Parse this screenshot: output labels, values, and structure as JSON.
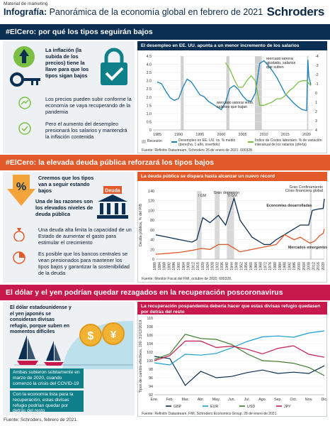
{
  "header": {
    "small": "Material de marketing",
    "title_bold": "Infografía:",
    "title_rest": " Panorámica de la economía global en febrero de 2021",
    "logo": "Schroders"
  },
  "section1": {
    "title": "#ElCero: por qué los tipos seguirán bajos",
    "text1": "La inflación (la subida de los precios) tiene la llave para que los tipos sigan bajos",
    "text2": "Los precios pueden subir conforme la economía se vaya recuperando de la pandemia",
    "text3": "Pero el aumento del desempleo presionará los salarios y mantendrá la inflación contenida",
    "chart_title": "El desempleo en EE. UU. apunta a un menor incremento de los salarios",
    "ann1": "Mercado laboral ajustado, salarios que suben",
    "ann2": "Mercado laboral lento, salarios que bajan",
    "legend1": "Recesión",
    "legend2": "Desempleo en EE. UU. vs. % medio (derecha, 1 año, invertido)",
    "legend3": "Índice de Costes laborales: % de variación interanual de los salarios (oferta)",
    "source": "Fuente: Refinitiv Datastream, Schroders 26 de enero de 2021. 600328"
  },
  "section2": {
    "title": "#ElCero: la elevada deuda pública reforzará los tipos bajos",
    "text1": "Creemos que los tipos van a seguir estando bajos",
    "text2": "Una de las razones son los elevados niveles de deuda pública",
    "text3": "Una deuda alta limita la capacidad de un Estado de aumentar el gasto para estimular el crecimiento",
    "text4": "Es posible que los bancos centrales se vean presionados para mantener los tipos bajos y garantizar la sostenibilidad de la deuda",
    "pct": "%",
    "deuda_label": "Deuda",
    "chart_title": "La deuda pública se dispara hasta alcanzar un nuevo récord",
    "ylabel": "Deuda pública, % del PIB",
    "ann_ww1": "I GM",
    "ann_ww2": "II GM",
    "ann_gd": "Gran depresión",
    "ann_gc": "Gran Confinamiento",
    "ann_cf": "Crisis financiera global",
    "series_adv": "Economías desarrolladas",
    "series_em": "Mercados emergentes",
    "source": "Fuente: Monitor Fiscal del FMI, octubre de 2020. 600328."
  },
  "section3": {
    "title": "El dólar y el yen podrían quedar rezagados en la recuperación poscoronavirus",
    "text1": "El dólar estadounidense y el yen japonés se consideran divisas refugio, porque suben en momentos difíciles",
    "text2": "Ambas subieron súbitamente en marzo de 2020, cuando comenzó la crisis del COVID-19",
    "text3": "Con la economía lista para la recuperación, estas divisas refugio podrían quedar por detrás del resto",
    "chart_title": "La recuperación pospandemia debería hacer que estas divisas refugio quedasen por detrás del resto",
    "ylabel": "Tipos de cambio efectivos, 100 :31/12/2019",
    "source": "Fuente: Refinitiv Datastream, FMI, Schroders Economics Group. 28 de enero de 2021."
  },
  "footer": "Fuente: Schroders, febrero de 2021.",
  "colors": {
    "navy": "#0a2f52",
    "orange": "#e2592a",
    "crimson": "#c8194d",
    "green": "#7bc043",
    "blue": "#1a7fb5",
    "teal": "#0f7f8a"
  },
  "chart_data": [
    {
      "type": "line",
      "title": "El desempleo en EE. UU. apunta a un menor incremento de los salarios",
      "x_ticks": [
        "1985",
        "1990",
        "1995",
        "2000",
        "2005",
        "2010",
        "2015",
        "2020"
      ],
      "y_left_ticks": [
        "0",
        "0.5",
        "1.0",
        "1.5",
        "2.0",
        "2.5",
        "3.0",
        "3.5",
        "4.0",
        "4.5"
      ],
      "y_right_ticks": [
        "-4",
        "-3",
        "-2",
        "-1",
        "0",
        "1",
        "2",
        "3",
        "4"
      ],
      "recessions": [
        [
          1990.5,
          1991.2
        ],
        [
          2001.2,
          2001.9
        ],
        [
          2007.9,
          2009.5
        ],
        [
          2020.1,
          2020.4
        ]
      ],
      "series": [
        {
          "name": "Desempleo en EE. UU. vs. % medio (derecha, 1 año, invertido)",
          "color": "#1a7fb5",
          "x": [
            1985,
            1986,
            1987,
            1988,
            1989,
            1990,
            1991,
            1992,
            1993,
            1994,
            1995,
            1996,
            1997,
            1998,
            1999,
            2000,
            2001,
            2002,
            2003,
            2004,
            2005,
            2006,
            2007,
            2008,
            2009,
            2010,
            2011,
            2012,
            2013,
            2014,
            2015,
            2016,
            2017,
            2018,
            2019,
            2020,
            2020.3,
            2020.5,
            2021
          ],
          "y": [
            -1.2,
            -1.0,
            -0.2,
            0.5,
            0.8,
            0.6,
            -0.6,
            -1.5,
            -1.2,
            -0.5,
            0.2,
            0.4,
            0.9,
            1.2,
            1.5,
            1.8,
            1.0,
            -0.5,
            -0.8,
            -0.4,
            0.3,
            0.8,
            0.9,
            0.0,
            -3.2,
            -3.5,
            -3.0,
            -2.4,
            -1.7,
            -0.8,
            0.1,
            0.6,
            1.1,
            1.5,
            1.8,
            1.9,
            -3.6,
            -1.8,
            -0.9
          ]
        },
        {
          "name": "Índice de Costes laborales: % de variación interanual de los salarios (oferta)",
          "color": "#7bc043",
          "x": [
            2001,
            2002,
            2003,
            2004,
            2005,
            2006,
            2007,
            2008,
            2009,
            2010,
            2011,
            2012,
            2013,
            2014,
            2015,
            2016,
            2017,
            2018,
            2019,
            2020,
            2021
          ],
          "y": [
            4.1,
            3.7,
            3.1,
            2.6,
            2.6,
            3.0,
            3.3,
            3.0,
            1.5,
            1.5,
            1.6,
            1.7,
            1.9,
            1.9,
            2.1,
            2.4,
            2.6,
            2.9,
            3.0,
            3.0,
            2.7
          ]
        }
      ]
    },
    {
      "type": "line",
      "title": "La deuda pública se dispara hasta alcanzar un nuevo récord",
      "ylabel": "Deuda pública, % del PIB",
      "x_ticks": [
        "1880",
        "1884",
        "1888",
        "1892",
        "1896",
        "1900",
        "1904",
        "1908",
        "1912",
        "1916",
        "1920",
        "1924",
        "1928",
        "1932",
        "1936",
        "1940",
        "1944",
        "1948",
        "1952",
        "1956",
        "1960",
        "1964",
        "1968",
        "1972",
        "1976",
        "1980",
        "1984",
        "1988",
        "1992",
        "1996",
        "2000",
        "2004",
        "2008",
        "2012",
        "2016",
        "2020"
      ],
      "y_ticks": [
        "0",
        "20",
        "40",
        "60",
        "80",
        "100",
        "120",
        "140"
      ],
      "series": [
        {
          "name": "Economías desarrolladas",
          "color": "#0a2f52",
          "x": [
            1880,
            1890,
            1900,
            1910,
            1914,
            1919,
            1925,
            1932,
            1938,
            1945,
            1950,
            1960,
            1970,
            1975,
            1980,
            1990,
            2000,
            2007,
            2010,
            2015,
            2019,
            2020
          ],
          "y": [
            50,
            45,
            40,
            35,
            40,
            85,
            75,
            90,
            70,
            125,
            80,
            45,
            30,
            30,
            40,
            55,
            70,
            70,
            100,
            103,
            104,
            124
          ]
        },
        {
          "name": "Mercados emergentes",
          "color": "#e2592a",
          "x": [
            1880,
            1890,
            1900,
            1910,
            1918,
            1925,
            1932,
            1940,
            1950,
            1960,
            1970,
            1980,
            1987,
            1995,
            2000,
            2008,
            2012,
            2016,
            2019,
            2020
          ],
          "y": [
            10,
            12,
            14,
            18,
            22,
            20,
            30,
            30,
            15,
            20,
            25,
            30,
            50,
            40,
            45,
            33,
            37,
            48,
            53,
            62
          ]
        }
      ]
    },
    {
      "type": "line",
      "title": "La recuperación pospandemia debería hacer que estas divisas refugio quedasen por detrás del resto",
      "ylabel": "Tipos de cambio efectivos, 100 :31/12/2019",
      "categories": [
        "Ene.",
        "Feb.",
        "Mar.",
        "Abr.",
        "May.",
        "Jun.",
        "Jul.",
        "Ago.",
        "Sep.",
        "Oct.",
        "Nov.",
        "Dic."
      ],
      "y_ticks": [
        "92",
        "94",
        "96",
        "98",
        "100",
        "102",
        "104",
        "106",
        "108",
        "110"
      ],
      "series": [
        {
          "name": "GBP",
          "color": "#0a2f52",
          "values": [
            101,
            100.5,
            94.2,
            97.5,
            96,
            96.3,
            97.2,
            97.8,
            97,
            97.3,
            97,
            98.8
          ]
        },
        {
          "name": "EUR",
          "color": "#1a9fd0",
          "values": [
            99.5,
            99,
            101.5,
            101.3,
            101.7,
            103,
            104.5,
            105.6,
            105.8,
            105.5,
            106.5,
            107
          ]
        },
        {
          "name": "USD",
          "color": "#3b7a2a",
          "values": [
            100.3,
            101.6,
            106.2,
            105.2,
            105,
            103.8,
            101.6,
            100,
            99.8,
            99.4,
            98.4,
            96.5
          ]
        },
        {
          "name": "JPY",
          "color": "#c8194d",
          "values": [
            100,
            101.2,
            104.6,
            104.6,
            103.1,
            103.4,
            102.7,
            101.6,
            102.9,
            103.5,
            101.5,
            100.8
          ]
        }
      ]
    }
  ]
}
